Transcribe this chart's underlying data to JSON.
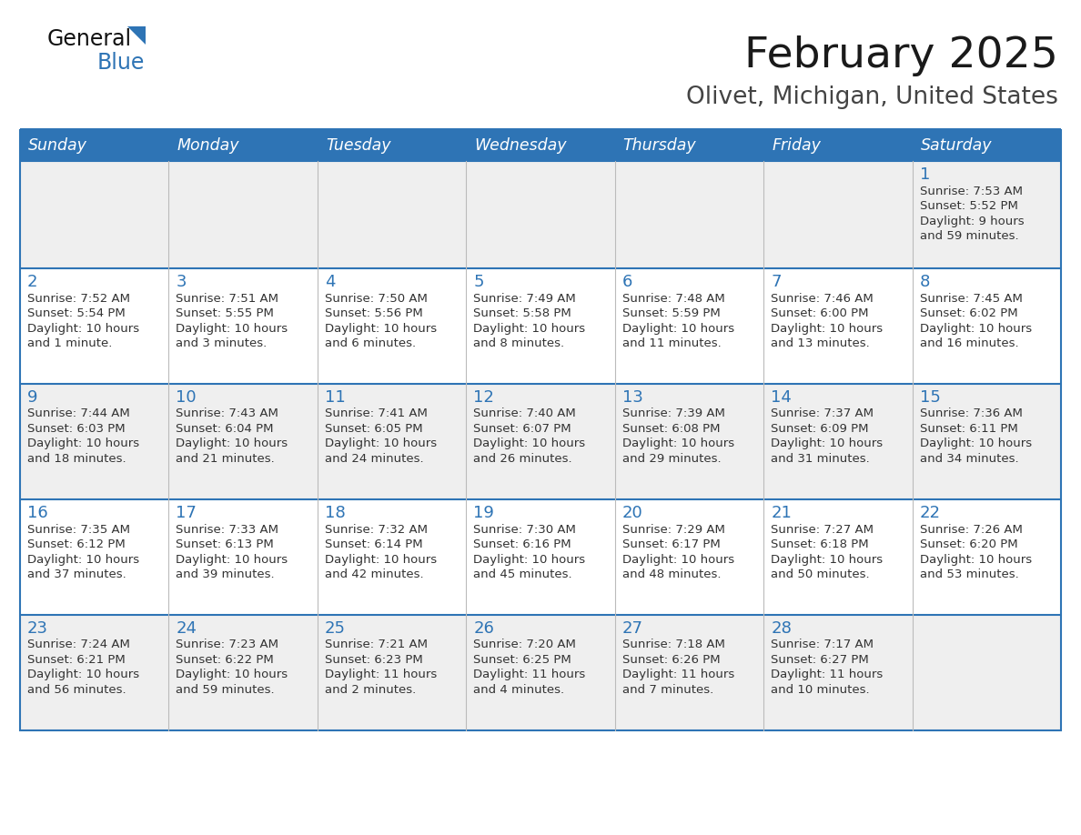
{
  "title": "February 2025",
  "subtitle": "Olivet, Michigan, United States",
  "header_bg": "#2E74B5",
  "header_text_color": "#FFFFFF",
  "cell_bg_row0": "#EFEFEF",
  "cell_bg_row1": "#FFFFFF",
  "cell_bg_row2": "#EFEFEF",
  "cell_bg_row3": "#FFFFFF",
  "cell_bg_row4": "#EFEFEF",
  "border_color": "#2E74B5",
  "title_color": "#1a1a1a",
  "subtitle_color": "#444444",
  "day_num_color": "#2E74B5",
  "cell_text_color": "#333333",
  "days_of_week": [
    "Sunday",
    "Monday",
    "Tuesday",
    "Wednesday",
    "Thursday",
    "Friday",
    "Saturday"
  ],
  "calendar_data": [
    [
      null,
      null,
      null,
      null,
      null,
      null,
      {
        "day": 1,
        "sunrise": "7:53 AM",
        "sunset": "5:52 PM",
        "daylight": "9 hours",
        "daylight2": "and 59 minutes."
      }
    ],
    [
      {
        "day": 2,
        "sunrise": "7:52 AM",
        "sunset": "5:54 PM",
        "daylight": "10 hours",
        "daylight2": "and 1 minute."
      },
      {
        "day": 3,
        "sunrise": "7:51 AM",
        "sunset": "5:55 PM",
        "daylight": "10 hours",
        "daylight2": "and 3 minutes."
      },
      {
        "day": 4,
        "sunrise": "7:50 AM",
        "sunset": "5:56 PM",
        "daylight": "10 hours",
        "daylight2": "and 6 minutes."
      },
      {
        "day": 5,
        "sunrise": "7:49 AM",
        "sunset": "5:58 PM",
        "daylight": "10 hours",
        "daylight2": "and 8 minutes."
      },
      {
        "day": 6,
        "sunrise": "7:48 AM",
        "sunset": "5:59 PM",
        "daylight": "10 hours",
        "daylight2": "and 11 minutes."
      },
      {
        "day": 7,
        "sunrise": "7:46 AM",
        "sunset": "6:00 PM",
        "daylight": "10 hours",
        "daylight2": "and 13 minutes."
      },
      {
        "day": 8,
        "sunrise": "7:45 AM",
        "sunset": "6:02 PM",
        "daylight": "10 hours",
        "daylight2": "and 16 minutes."
      }
    ],
    [
      {
        "day": 9,
        "sunrise": "7:44 AM",
        "sunset": "6:03 PM",
        "daylight": "10 hours",
        "daylight2": "and 18 minutes."
      },
      {
        "day": 10,
        "sunrise": "7:43 AM",
        "sunset": "6:04 PM",
        "daylight": "10 hours",
        "daylight2": "and 21 minutes."
      },
      {
        "day": 11,
        "sunrise": "7:41 AM",
        "sunset": "6:05 PM",
        "daylight": "10 hours",
        "daylight2": "and 24 minutes."
      },
      {
        "day": 12,
        "sunrise": "7:40 AM",
        "sunset": "6:07 PM",
        "daylight": "10 hours",
        "daylight2": "and 26 minutes."
      },
      {
        "day": 13,
        "sunrise": "7:39 AM",
        "sunset": "6:08 PM",
        "daylight": "10 hours",
        "daylight2": "and 29 minutes."
      },
      {
        "day": 14,
        "sunrise": "7:37 AM",
        "sunset": "6:09 PM",
        "daylight": "10 hours",
        "daylight2": "and 31 minutes."
      },
      {
        "day": 15,
        "sunrise": "7:36 AM",
        "sunset": "6:11 PM",
        "daylight": "10 hours",
        "daylight2": "and 34 minutes."
      }
    ],
    [
      {
        "day": 16,
        "sunrise": "7:35 AM",
        "sunset": "6:12 PM",
        "daylight": "10 hours",
        "daylight2": "and 37 minutes."
      },
      {
        "day": 17,
        "sunrise": "7:33 AM",
        "sunset": "6:13 PM",
        "daylight": "10 hours",
        "daylight2": "and 39 minutes."
      },
      {
        "day": 18,
        "sunrise": "7:32 AM",
        "sunset": "6:14 PM",
        "daylight": "10 hours",
        "daylight2": "and 42 minutes."
      },
      {
        "day": 19,
        "sunrise": "7:30 AM",
        "sunset": "6:16 PM",
        "daylight": "10 hours",
        "daylight2": "and 45 minutes."
      },
      {
        "day": 20,
        "sunrise": "7:29 AM",
        "sunset": "6:17 PM",
        "daylight": "10 hours",
        "daylight2": "and 48 minutes."
      },
      {
        "day": 21,
        "sunrise": "7:27 AM",
        "sunset": "6:18 PM",
        "daylight": "10 hours",
        "daylight2": "and 50 minutes."
      },
      {
        "day": 22,
        "sunrise": "7:26 AM",
        "sunset": "6:20 PM",
        "daylight": "10 hours",
        "daylight2": "and 53 minutes."
      }
    ],
    [
      {
        "day": 23,
        "sunrise": "7:24 AM",
        "sunset": "6:21 PM",
        "daylight": "10 hours",
        "daylight2": "and 56 minutes."
      },
      {
        "day": 24,
        "sunrise": "7:23 AM",
        "sunset": "6:22 PM",
        "daylight": "10 hours",
        "daylight2": "and 59 minutes."
      },
      {
        "day": 25,
        "sunrise": "7:21 AM",
        "sunset": "6:23 PM",
        "daylight": "11 hours",
        "daylight2": "and 2 minutes."
      },
      {
        "day": 26,
        "sunrise": "7:20 AM",
        "sunset": "6:25 PM",
        "daylight": "11 hours",
        "daylight2": "and 4 minutes."
      },
      {
        "day": 27,
        "sunrise": "7:18 AM",
        "sunset": "6:26 PM",
        "daylight": "11 hours",
        "daylight2": "and 7 minutes."
      },
      {
        "day": 28,
        "sunrise": "7:17 AM",
        "sunset": "6:27 PM",
        "daylight": "11 hours",
        "daylight2": "and 10 minutes."
      },
      null
    ]
  ],
  "figsize": [
    11.88,
    9.18
  ],
  "dpi": 100
}
